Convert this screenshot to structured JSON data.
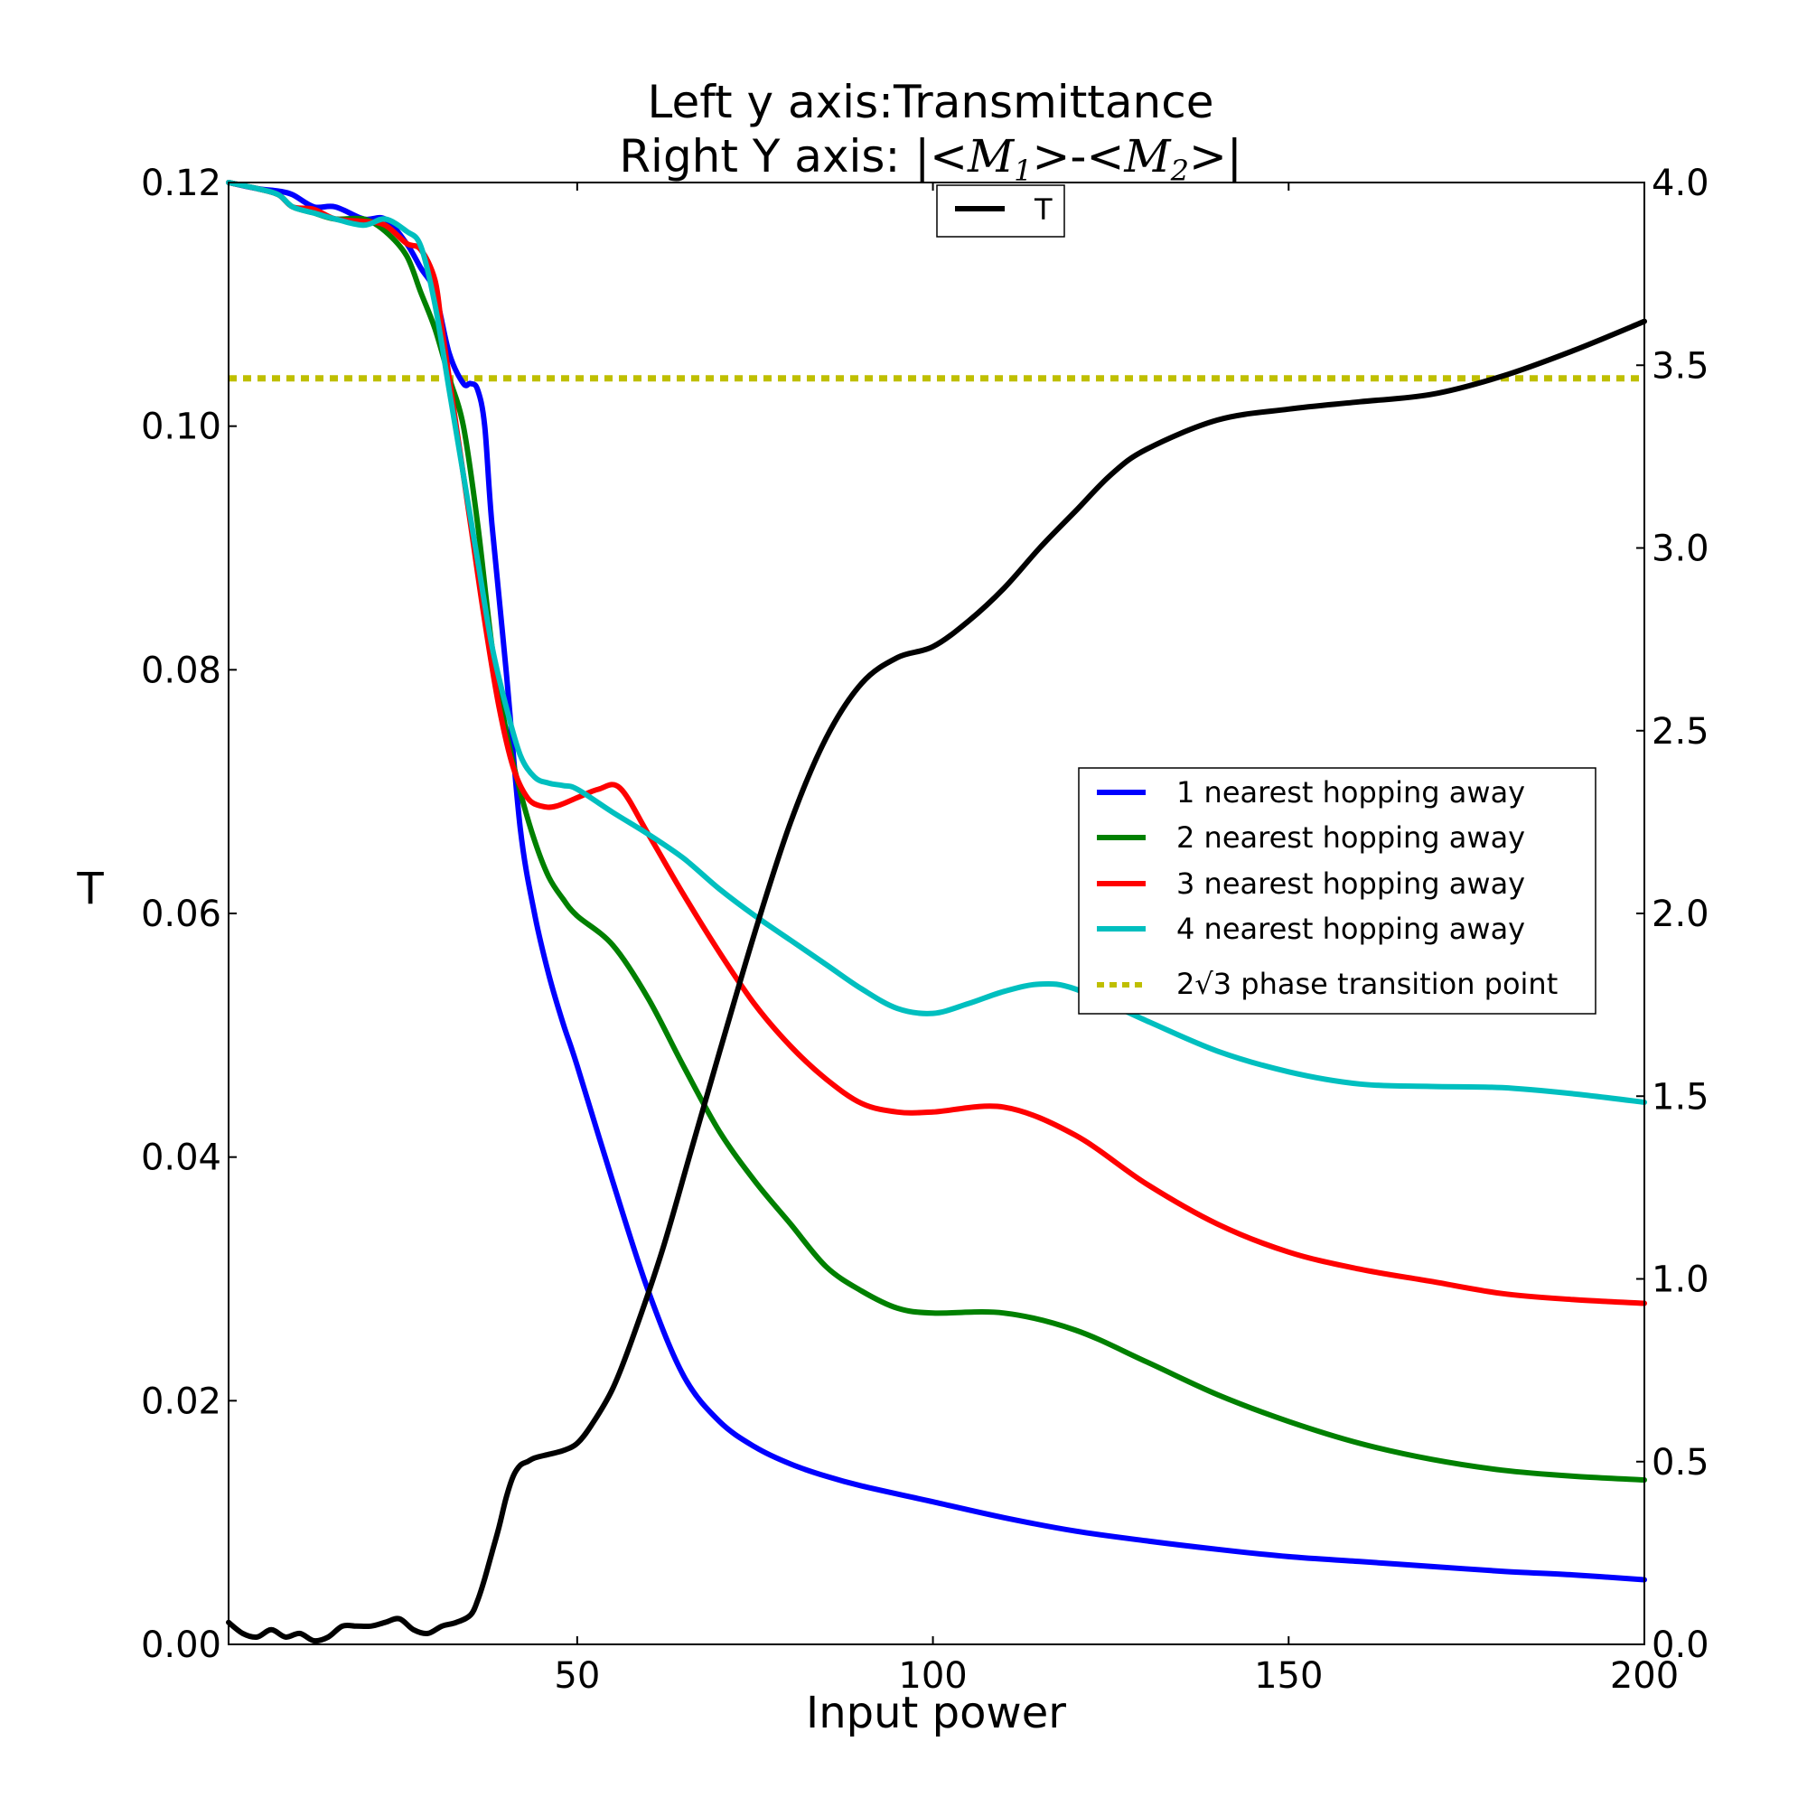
{
  "chart_data": {
    "type": "line",
    "title": "Left y axis:Transmittance",
    "subtitle": "Right Y axis: |<M1>-<M2>|",
    "subtitle_parts": {
      "prefix": "Right Y axis: |<",
      "m1": "M",
      "m1_sub": "1",
      "mid": ">-<",
      "m2": "M",
      "m2_sub": "2",
      "suffix": ">|"
    },
    "xlabel": "Input power",
    "ylabel": "T",
    "y2label": "",
    "xlim": [
      1,
      200
    ],
    "ylim": [
      0.0,
      0.12
    ],
    "y2lim": [
      0.0,
      4.0
    ],
    "x_ticks": [
      "50",
      "100",
      "150",
      "200"
    ],
    "y_ticks": [
      "0.00",
      "0.02",
      "0.04",
      "0.06",
      "0.08",
      "0.10",
      "0.12"
    ],
    "y2_ticks": [
      "0.0",
      "0.5",
      "1.0",
      "1.5",
      "2.0",
      "2.5",
      "3.0",
      "3.5",
      "4.0"
    ],
    "grid": false,
    "legend_right_axis": {
      "placement": "top-center",
      "entries": [
        "T"
      ]
    },
    "legend_left_axis": {
      "placement": "center-right",
      "entries": [
        "1 nearest hopping away",
        "2 nearest hopping away",
        "3 nearest hopping away",
        "4 nearest hopping away",
        "2√3 phase transition point"
      ]
    },
    "series": [
      {
        "name": "1 nearest hopping away",
        "axis": "left",
        "color": "#0000ff",
        "x": [
          1,
          5,
          8,
          10,
          13,
          16,
          20,
          23,
          26,
          28,
          30,
          32,
          34,
          35,
          36,
          37,
          38,
          40,
          42,
          44,
          46,
          48,
          50,
          55,
          60,
          65,
          70,
          75,
          80,
          85,
          90,
          100,
          110,
          120,
          130,
          140,
          150,
          160,
          170,
          180,
          190,
          200
        ],
        "y": [
          0.12,
          0.1195,
          0.1193,
          0.119,
          0.118,
          0.118,
          0.117,
          0.117,
          0.115,
          0.113,
          0.111,
          0.106,
          0.1035,
          0.1035,
          0.103,
          0.1,
          0.092,
          0.08,
          0.067,
          0.06,
          0.055,
          0.051,
          0.0475,
          0.038,
          0.029,
          0.022,
          0.0183,
          0.0162,
          0.0148,
          0.0138,
          0.013,
          0.0117,
          0.0104,
          0.0093,
          0.0085,
          0.0078,
          0.0072,
          0.0068,
          0.0064,
          0.006,
          0.0057,
          0.0053
        ]
      },
      {
        "name": "2 nearest hopping away",
        "axis": "left",
        "color": "#008000",
        "x": [
          1,
          5,
          8,
          10,
          13,
          16,
          20,
          23,
          26,
          28,
          30,
          32,
          34,
          36,
          38,
          40,
          42,
          44,
          46,
          48,
          50,
          55,
          60,
          65,
          70,
          75,
          80,
          85,
          90,
          95,
          100,
          110,
          120,
          130,
          140,
          150,
          160,
          170,
          180,
          190,
          200
        ],
        "y": [
          0.12,
          0.1195,
          0.119,
          0.118,
          0.1175,
          0.117,
          0.117,
          0.116,
          0.114,
          0.111,
          0.108,
          0.104,
          0.1,
          0.092,
          0.082,
          0.075,
          0.07,
          0.066,
          0.063,
          0.0612,
          0.0598,
          0.0574,
          0.053,
          0.0474,
          0.0421,
          0.038,
          0.0345,
          0.031,
          0.029,
          0.0276,
          0.0272,
          0.0272,
          0.0258,
          0.0232,
          0.0205,
          0.0183,
          0.0165,
          0.0152,
          0.0143,
          0.0138,
          0.0135
        ]
      },
      {
        "name": "3 nearest hopping away",
        "axis": "left",
        "color": "#ff0000",
        "x": [
          1,
          5,
          8,
          10,
          13,
          16,
          20,
          23,
          26,
          28,
          30,
          31,
          33,
          35,
          37,
          39,
          41,
          43,
          45,
          47,
          50,
          53,
          56,
          60,
          65,
          70,
          75,
          80,
          85,
          90,
          95,
          100,
          110,
          120,
          130,
          140,
          150,
          160,
          170,
          180,
          190,
          200
        ],
        "y": [
          0.12,
          0.1195,
          0.119,
          0.118,
          0.1178,
          0.117,
          0.1168,
          0.1165,
          0.115,
          0.1145,
          0.112,
          0.108,
          0.1,
          0.092,
          0.084,
          0.077,
          0.072,
          0.0695,
          0.0688,
          0.0688,
          0.0695,
          0.0702,
          0.0703,
          0.0665,
          0.0615,
          0.0568,
          0.0525,
          0.0491,
          0.0464,
          0.0444,
          0.0437,
          0.0437,
          0.0441,
          0.0418,
          0.0378,
          0.0345,
          0.0322,
          0.0308,
          0.0298,
          0.0288,
          0.0283,
          0.028
        ]
      },
      {
        "name": "4 nearest hopping away",
        "axis": "left",
        "color": "#00bfbf",
        "x": [
          1,
          5,
          8,
          10,
          13,
          16,
          20,
          23,
          26,
          28,
          30,
          32,
          34,
          36,
          38,
          40,
          42,
          44,
          46,
          48,
          50,
          55,
          60,
          65,
          70,
          75,
          80,
          85,
          90,
          95,
          100,
          105,
          110,
          115,
          120,
          130,
          140,
          150,
          160,
          170,
          180,
          190,
          200
        ],
        "y": [
          0.12,
          0.1195,
          0.119,
          0.118,
          0.1175,
          0.117,
          0.1165,
          0.117,
          0.116,
          0.1148,
          0.11,
          0.103,
          0.096,
          0.089,
          0.082,
          0.077,
          0.073,
          0.0712,
          0.0707,
          0.0705,
          0.0702,
          0.0683,
          0.0665,
          0.0645,
          0.062,
          0.0598,
          0.0578,
          0.0558,
          0.0538,
          0.0522,
          0.0518,
          0.0526,
          0.0536,
          0.0542,
          0.0538,
          0.0512,
          0.0487,
          0.047,
          0.046,
          0.0458,
          0.0457,
          0.0452,
          0.0445
        ]
      },
      {
        "name": "2√3 phase transition point",
        "axis": "right",
        "color": "#bfbf00",
        "style": "dotted",
        "x": [
          1,
          200
        ],
        "y": [
          3.4641,
          3.4641
        ]
      },
      {
        "name": "T",
        "axis": "right",
        "color": "#000000",
        "x": [
          1,
          3,
          5,
          7,
          9,
          11,
          13,
          15,
          17,
          19,
          21,
          23,
          25,
          27,
          29,
          31,
          33,
          35,
          36,
          37,
          38,
          39,
          40,
          41,
          42,
          43,
          44,
          46,
          48,
          50,
          52,
          55,
          58,
          62,
          66,
          70,
          75,
          80,
          85,
          90,
          95,
          100,
          105,
          110,
          115,
          120,
          125,
          130,
          140,
          150,
          160,
          170,
          180,
          190,
          200
        ],
        "y": [
          0.06,
          0.03,
          0.02,
          0.04,
          0.02,
          0.03,
          0.01,
          0.02,
          0.05,
          0.05,
          0.05,
          0.06,
          0.07,
          0.04,
          0.03,
          0.05,
          0.06,
          0.08,
          0.12,
          0.18,
          0.25,
          0.32,
          0.4,
          0.46,
          0.49,
          0.5,
          0.51,
          0.52,
          0.53,
          0.55,
          0.6,
          0.7,
          0.85,
          1.08,
          1.35,
          1.62,
          1.95,
          2.25,
          2.48,
          2.63,
          2.7,
          2.73,
          2.8,
          2.89,
          3.0,
          3.1,
          3.2,
          3.27,
          3.35,
          3.38,
          3.4,
          3.42,
          3.47,
          3.54,
          3.62
        ]
      }
    ]
  }
}
